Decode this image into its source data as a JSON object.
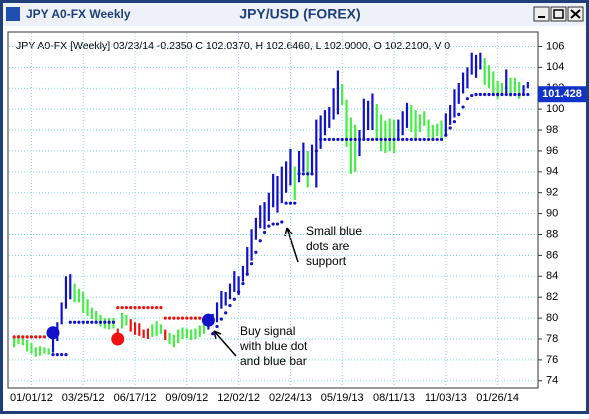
{
  "window_title": "JPY A0-FX Weekly",
  "chart_data": {
    "type": "ohlc",
    "title": "JPY/USD (FOREX)",
    "subtitle": "JPY A0-FX [Weekly] 03/23/14  -0.2350 C 102.0370, H 102.6460, L 102.0000, O 102.2100, V 0",
    "categories": [
      null,
      null,
      null,
      null,
      "01/01/12",
      null,
      null,
      null,
      null,
      null,
      null,
      null,
      null,
      null,
      null,
      null,
      "03/25/12",
      null,
      null,
      null,
      null,
      null,
      null,
      null,
      null,
      null,
      null,
      null,
      "06/17/12",
      null,
      null,
      null,
      null,
      null,
      null,
      null,
      null,
      null,
      null,
      null,
      "09/09/12",
      null,
      null,
      null,
      null,
      null,
      null,
      null,
      null,
      null,
      null,
      null,
      "12/02/12",
      null,
      null,
      null,
      null,
      null,
      null,
      null,
      null,
      null,
      null,
      null,
      "02/24/13",
      null,
      null,
      null,
      null,
      null,
      null,
      null,
      null,
      null,
      null,
      null,
      "05/19/13",
      null,
      null,
      null,
      null,
      null,
      null,
      null,
      null,
      null,
      null,
      null,
      "08/11/13",
      null,
      null,
      null,
      null,
      null,
      null,
      null,
      null,
      null,
      null,
      null,
      "11/03/13",
      null,
      null,
      null,
      null,
      null,
      null,
      null,
      null,
      null,
      null,
      null,
      "01/26/14",
      null,
      null,
      null,
      null,
      null,
      null,
      null
    ],
    "low": [
      77.2,
      77.5,
      77.4,
      76.8,
      76.6,
      76.3,
      76.4,
      76.6,
      76.5,
      76.7,
      77.8,
      79.4,
      80.9,
      81.8,
      81.5,
      81.5,
      80.5,
      80.2,
      79.9,
      79.5,
      79.2,
      79.0,
      78.9,
      79.0,
      77.9,
      79.0,
      79.3,
      78.7,
      78.4,
      78.3,
      78.1,
      78.0,
      78.2,
      78.3,
      78.5,
      77.9,
      77.5,
      77.2,
      77.6,
      78.0,
      78.1,
      77.9,
      78.0,
      78.2,
      78.5,
      78.9,
      79.4,
      79.6,
      80.9,
      81.2,
      81.8,
      82.5,
      82.2,
      83.5,
      84.2,
      85.5,
      87.5,
      88.6,
      88.5,
      89.3,
      90.6,
      90.1,
      91.0,
      92.0,
      92.7,
      91.3,
      93.0,
      94.0,
      92.5,
      93.7,
      92.5,
      96.2,
      97.5,
      98.2,
      99.0,
      99.5,
      100.4,
      96.4,
      93.8,
      94.0,
      95.5,
      97.2,
      98.0,
      98.0,
      97.2,
      96.0,
      95.8,
      96.0,
      95.8,
      97.0,
      97.5,
      98.2,
      97.8,
      97.2,
      97.8,
      98.4,
      97.3,
      97.0,
      97.4,
      97.2,
      97.5,
      98.5,
      99.2,
      100.5,
      101.5,
      102.0,
      103.3,
      103.0,
      103.8,
      102.3,
      102.0,
      101.3,
      101.0,
      101.3,
      101.5,
      101.2,
      101.6,
      101.0,
      101.4,
      102.0
    ],
    "high": [
      78.2,
      78.4,
      78.1,
      77.9,
      77.6,
      77.2,
      77.3,
      77.2,
      77.1,
      78.6,
      79.6,
      81.5,
      84.0,
      84.2,
      83.3,
      82.8,
      82.5,
      81.8,
      81.0,
      80.7,
      80.3,
      80.0,
      80.0,
      80.0,
      79.0,
      80.5,
      80.3,
      79.9,
      79.6,
      79.5,
      78.9,
      79.0,
      79.4,
      79.7,
      79.4,
      78.9,
      78.6,
      78.4,
      78.9,
      79.1,
      79.0,
      78.9,
      79.0,
      79.3,
      79.5,
      80.0,
      80.4,
      81.5,
      82.6,
      82.5,
      83.3,
      84.5,
      84.0,
      85.0,
      86.8,
      88.5,
      89.6,
      90.8,
      91.1,
      92.0,
      93.8,
      93.6,
      94.5,
      95.0,
      96.2,
      94.5,
      96.0,
      96.8,
      96.0,
      96.6,
      99.0,
      99.4,
      99.9,
      100.2,
      102.0,
      103.7,
      102.4,
      100.9,
      99.2,
      98.5,
      98.0,
      101.0,
      100.8,
      101.5,
      100.5,
      99.5,
      98.9,
      99.1,
      99.0,
      99.0,
      99.8,
      100.6,
      100.4,
      99.9,
      99.5,
      99.8,
      99.0,
      98.5,
      98.6,
      98.9,
      99.6,
      100.4,
      101.9,
      102.5,
      103.5,
      104.0,
      105.4,
      105.2,
      105.4,
      104.9,
      104.2,
      103.6,
      102.7,
      102.5,
      103.8,
      103.0,
      103.0,
      102.6,
      102.3,
      102.6
    ],
    "bar_colors": [
      "#4e4",
      "#4e4",
      "#4e4",
      "#4e4",
      "#4e4",
      "#4e4",
      "#4e4",
      "#4e4",
      "#4e4",
      "#11c",
      "#11c",
      "#11c",
      "#11c",
      "#11c",
      "#4e4",
      "#4e4",
      "#4e4",
      "#4e4",
      "#4e4",
      "#4e4",
      "#4e4",
      "#4e4",
      "#4e4",
      "#4e4",
      "#e11",
      "#4e4",
      "#4e4",
      "#e11",
      "#e11",
      "#e11",
      "#e11",
      "#e11",
      "#4e4",
      "#4e4",
      "#4e4",
      "#e11",
      "#4e4",
      "#4e4",
      "#4e4",
      "#4e4",
      "#4e4",
      "#4e4",
      "#4e4",
      "#4e4",
      "#4e4",
      "#11c",
      "#11c",
      "#11c",
      "#11c",
      "#11c",
      "#11c",
      "#11c",
      "#11c",
      "#11c",
      "#11c",
      "#11c",
      "#11c",
      "#11c",
      "#11c",
      "#11c",
      "#11c",
      "#11c",
      "#11c",
      "#11c",
      "#11c",
      "#4e4",
      "#11c",
      "#11c",
      "#4e4",
      "#11c",
      "#11c",
      "#11c",
      "#11c",
      "#11c",
      "#11c",
      "#11c",
      "#4e4",
      "#4e4",
      "#4e4",
      "#4e4",
      "#11c",
      "#11c",
      "#11c",
      "#11c",
      "#4e4",
      "#4e4",
      "#4e4",
      "#4e4",
      "#4e4",
      "#11c",
      "#11c",
      "#11c",
      "#4e4",
      "#4e4",
      "#4e4",
      "#4e4",
      "#4e4",
      "#4e4",
      "#4e4",
      "#4e4",
      "#11c",
      "#11c",
      "#11c",
      "#11c",
      "#11c",
      "#11c",
      "#11c",
      "#11c",
      "#11c",
      "#4e4",
      "#4e4",
      "#4e4",
      "#4e4",
      "#4e4",
      "#11c",
      "#4e4",
      "#4e4",
      "#4e4",
      "#11c",
      "#11c"
    ],
    "support": [
      {
        "color": "#e11",
        "values": [
          78.2,
          78.2,
          78.2,
          78.2,
          78.2,
          78.2,
          78.2,
          78.2,
          null,
          null,
          null,
          null,
          null,
          null,
          null,
          null,
          null,
          null,
          null,
          null,
          null,
          null,
          null,
          null,
          81.0,
          81.0,
          81.0,
          81.0,
          81.0,
          81.0,
          81.0,
          81.0,
          81.0,
          81.0,
          81.0,
          80.0,
          80.0,
          80.0,
          80.0,
          80.0,
          80.0,
          80.0,
          80.0,
          80.0,
          80.0,
          null,
          null,
          null,
          null,
          null,
          null,
          null,
          null,
          null,
          null,
          null,
          null,
          null,
          null,
          null,
          null,
          null,
          null,
          null,
          null,
          null,
          null,
          null,
          null,
          null,
          null,
          null,
          null,
          null,
          null,
          null,
          null,
          null,
          null,
          null,
          null,
          null,
          null,
          null,
          null,
          null,
          null,
          null,
          null,
          null,
          null,
          null,
          null,
          null,
          null,
          null,
          null,
          null,
          null,
          null,
          null,
          null,
          null,
          null,
          null,
          null,
          null,
          null,
          null,
          null,
          null,
          null,
          null,
          null,
          null,
          null,
          null,
          null,
          null,
          null
        ]
      },
      {
        "color": "#11c",
        "values": [
          null,
          null,
          null,
          null,
          null,
          null,
          null,
          null,
          null,
          76.5,
          76.5,
          76.5,
          76.5,
          79.6,
          79.6,
          79.6,
          79.6,
          79.6,
          79.6,
          79.6,
          79.6,
          79.6,
          79.6,
          79.6,
          null,
          null,
          null,
          null,
          null,
          null,
          null,
          null,
          null,
          null,
          null,
          null,
          null,
          null,
          null,
          null,
          null,
          null,
          null,
          null,
          null,
          null,
          78.5,
          79.2,
          79.9,
          80.5,
          81.2,
          81.8,
          82.5,
          83.3,
          84.2,
          85.2,
          86.3,
          87.4,
          88.2,
          88.8,
          89.0,
          89.0,
          89.2,
          91.0,
          91.0,
          91.0,
          93.8,
          93.8,
          93.8,
          93.8,
          96.0,
          97.1,
          97.1,
          97.1,
          97.1,
          97.1,
          97.1,
          97.1,
          97.1,
          97.1,
          97.1,
          97.1,
          97.1,
          97.1,
          97.1,
          97.1,
          97.1,
          97.1,
          97.1,
          97.1,
          97.1,
          97.1,
          97.1,
          97.1,
          97.1,
          97.1,
          97.1,
          97.1,
          97.1,
          97.1,
          97.5,
          98.2,
          98.8,
          99.5,
          100.2,
          101.0,
          101.3,
          101.4,
          101.4,
          101.4,
          101.4,
          101.4,
          101.4,
          101.4,
          101.4,
          101.4,
          101.4,
          101.4,
          101.4,
          101.4
        ]
      }
    ],
    "signals": [
      {
        "x": 9,
        "value": 78.6,
        "color": "#11c"
      },
      {
        "x": 24,
        "value": 78.0,
        "color": "#e11"
      },
      {
        "x": 45,
        "value": 79.8,
        "color": "#11c"
      }
    ],
    "last_price": 101.428,
    "ylim": [
      73.5,
      107
    ],
    "yticks": [
      74,
      76,
      78,
      80,
      82,
      84,
      86,
      88,
      90,
      92,
      94,
      96,
      98,
      100,
      102,
      104,
      106
    ],
    "grid": true,
    "annotations": [
      {
        "lines": [
          "Small blue",
          "dots are",
          "support"
        ]
      },
      {
        "lines": [
          "Buy signal",
          "with blue dot",
          "and blue bar"
        ]
      }
    ]
  }
}
